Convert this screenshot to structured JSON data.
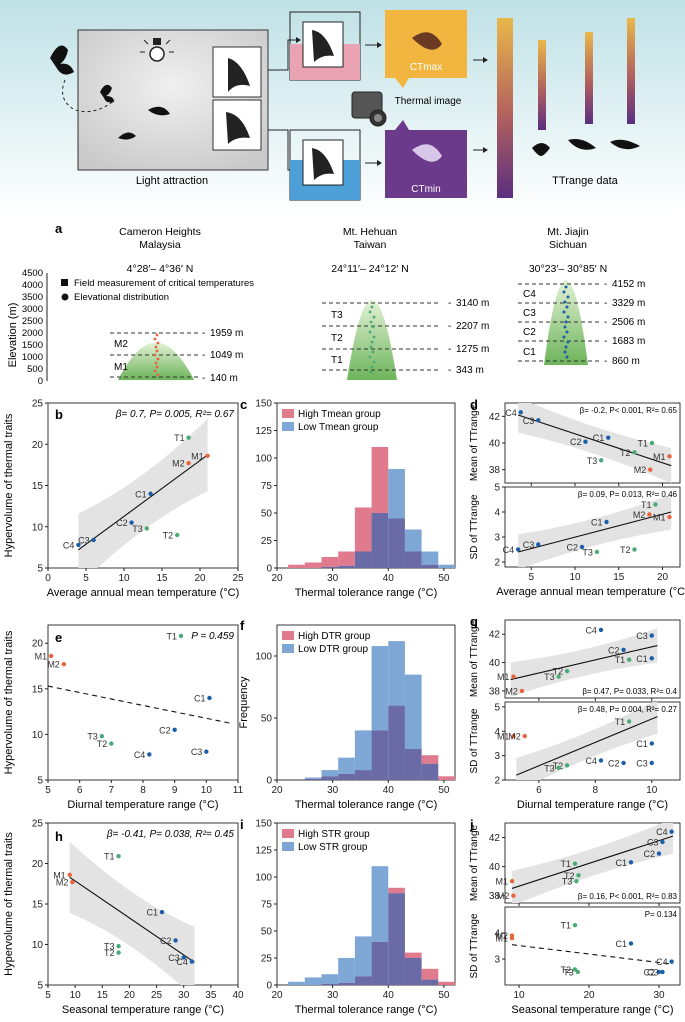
{
  "colors": {
    "tropical": "#e8643c",
    "subtropical": "#4aaa78",
    "temperate": "#1a5fa8",
    "high_bar": "#e07b8e",
    "low_bar": "#7fa7d6",
    "overlap_bar": "#6a6aa6",
    "ci_band": "#e3e3e3",
    "sky_top": "#d6ecef",
    "ctmax_box": "#f2b640",
    "ctmin_box": "#6b3a8a"
  },
  "top": {
    "light_attraction": "Light attraction",
    "ctmax": "CTmax",
    "ctmin": "CTmin",
    "thermal_image": "Thermal image",
    "ttrange_data": "TTrange data"
  },
  "panel_a": {
    "letter": "a",
    "sites": [
      {
        "name": "Cameron Heights",
        "region": "Malaysia",
        "lat": "4°28′– 4°36′ N"
      },
      {
        "name": "Mt. Hehuan",
        "region": "Taiwan",
        "lat": "24°11′– 24°12′ N"
      },
      {
        "name": "Mt. Jiajin",
        "region": "Sichuan",
        "lat": "30°23′– 30°85′ N"
      }
    ],
    "ylabel": "Elevation (m)",
    "yticks": [
      "4500",
      "4000",
      "3500",
      "3000",
      "2500",
      "2000",
      "1500",
      "1000",
      "500",
      "0"
    ],
    "legend_square": "Field measurement of critical temperatures",
    "legend_circle": "Elevational distribution",
    "malaysia_bands": [
      "M2",
      "M1"
    ],
    "malaysia_elev": [
      "1959 m",
      "1049 m",
      "140 m"
    ],
    "taiwan_bands": [
      "T3",
      "T2",
      "T1"
    ],
    "taiwan_elev": [
      "3140 m",
      "2207 m",
      "1275 m",
      "343 m"
    ],
    "sichuan_bands": [
      "C4",
      "C3",
      "C2",
      "C1"
    ],
    "sichuan_elev": [
      "4152 m",
      "3329 m",
      "2506 m",
      "1683 m",
      "860 m"
    ]
  },
  "panel_b": {
    "letter": "b",
    "stat": "β= 0.7, P= 0.005, R²= 0.67",
    "xlabel": "Average annual mean temperature (°C)",
    "ylabel": "Hypervolume of thermal traits",
    "xticks": [
      "0",
      "5",
      "10",
      "15",
      "20",
      "25"
    ],
    "yticks": [
      "5",
      "10",
      "15",
      "20",
      "25"
    ]
  },
  "panel_c": {
    "letter": "c",
    "legend_high": "High Tmean group",
    "legend_low": "Low Tmean group",
    "xlabel": "Thermal tolerance range (°C)",
    "ylabel": "Frequency",
    "xticks": [
      "20",
      "30",
      "40",
      "50"
    ],
    "yticks": [
      "0",
      "25",
      "50",
      "75",
      "100",
      "125",
      "150"
    ]
  },
  "panel_d": {
    "letter": "d",
    "stat_top": "β= -0.2, P< 0.001, R²= 0.65",
    "stat_bottom": "β= 0.09, P= 0.013, R²= 0.46",
    "ylabel_top": "Mean of TTrange",
    "ylabel_bottom": "SD of TTrange",
    "xlabel": "Average annual mean temperature (°C)",
    "xticks": [
      "5",
      "10",
      "15",
      "20"
    ],
    "yticks_top": [
      "38",
      "40",
      "42"
    ],
    "yticks_bottom": [
      "2",
      "3",
      "4",
      "5"
    ]
  },
  "panel_e": {
    "letter": "e",
    "stat": "P = 0.459",
    "xlabel": "Diurnal temperature range (°C)",
    "ylabel": "Hypervolume of thermal traits",
    "xticks": [
      "5",
      "6",
      "7",
      "8",
      "9",
      "10",
      "11"
    ],
    "yticks": [
      "5",
      "10",
      "15",
      "20"
    ]
  },
  "panel_f": {
    "letter": "f",
    "legend_high": "High DTR group",
    "legend_low": "Low DTR group",
    "xlabel": "Thermal tolerance range (°C)",
    "ylabel": "Frequency",
    "xticks": [
      "20",
      "30",
      "40",
      "50"
    ],
    "yticks": [
      "0",
      "50",
      "100"
    ]
  },
  "panel_g": {
    "letter": "g",
    "stat_top": "β= 0.47, P= 0.033, R²= 0.4",
    "stat_bottom": "β= 0.48, P= 0.004, R²= 0.27",
    "ylabel_top": "Mean of TTrange",
    "ylabel_bottom": "SD of TTrange",
    "xlabel": "Diurnal temperature range (°C)",
    "xticks": [
      "6",
      "8",
      "10"
    ],
    "yticks_top": [
      "38",
      "40",
      "42"
    ],
    "yticks_bottom": [
      "2",
      "3",
      "4",
      "5"
    ]
  },
  "panel_h": {
    "letter": "h",
    "stat": "β= -0.41, P= 0.038, R²= 0.45",
    "xlabel": "Seasonal temperature range (°C)",
    "ylabel": "Hypervolume of thermal traits",
    "xticks": [
      "5",
      "10",
      "15",
      "20",
      "25",
      "30",
      "35",
      "40"
    ],
    "yticks": [
      "5",
      "10",
      "15",
      "20",
      "25"
    ]
  },
  "panel_i": {
    "letter": "i",
    "legend_high": "High STR group",
    "legend_low": "Low STR group",
    "xlabel": "Thermal tolerance range (°C)",
    "ylabel": "Frequency",
    "xticks": [
      "20",
      "30",
      "40",
      "50"
    ],
    "yticks": [
      "0",
      "25",
      "50",
      "75",
      "100",
      "125",
      "150"
    ]
  },
  "panel_j": {
    "letter": "j",
    "stat_top": "β= 0.16, P< 0.001, R²= 0.83",
    "stat_bottom": "P= 0.134",
    "ylabel_top": "Mean of TTrange",
    "ylabel_bottom": "SD of TTrange",
    "xlabel": "Seasonal temperature range (°C)",
    "xticks": [
      "10",
      "20",
      "30"
    ],
    "yticks_top": [
      "38",
      "40",
      "42"
    ],
    "yticks_bottom": [
      "3",
      "4"
    ]
  },
  "chart_data": [
    {
      "id": "b",
      "type": "scatter",
      "xlim": [
        0,
        25
      ],
      "ylim": [
        5,
        25
      ],
      "points": [
        {
          "label": "T1",
          "x": 18.5,
          "y": 20.8,
          "g": "s"
        },
        {
          "label": "M1",
          "x": 21,
          "y": 18.6,
          "g": "t"
        },
        {
          "label": "M2",
          "x": 18.5,
          "y": 17.7,
          "g": "t"
        },
        {
          "label": "C1",
          "x": 13.5,
          "y": 14.0,
          "g": "c"
        },
        {
          "label": "C2",
          "x": 11,
          "y": 10.5,
          "g": "c"
        },
        {
          "label": "T3",
          "x": 13,
          "y": 9.8,
          "g": "s"
        },
        {
          "label": "T2",
          "x": 17,
          "y": 9.0,
          "g": "s"
        },
        {
          "label": "C3",
          "x": 6,
          "y": 8.4,
          "g": "c"
        },
        {
          "label": "C4",
          "x": 4,
          "y": 7.8,
          "g": "c"
        }
      ],
      "fit": [
        [
          4,
          7.2
        ],
        [
          21,
          18.7
        ]
      ],
      "fit_style": "solid"
    },
    {
      "id": "c",
      "type": "histogram",
      "xlim": [
        20,
        52
      ],
      "ylim": [
        0,
        150
      ],
      "bin_start": 22,
      "bin_width": 3,
      "series": [
        {
          "name": "High Tmean group",
          "values": [
            3,
            5,
            10,
            15,
            55,
            110,
            45,
            15,
            3,
            0
          ]
        },
        {
          "name": "Low Tmean group",
          "values": [
            0,
            0,
            1,
            2,
            15,
            50,
            90,
            35,
            15,
            3
          ]
        }
      ]
    },
    {
      "id": "d_top",
      "type": "scatter",
      "xlim": [
        2,
        22
      ],
      "ylim": [
        37,
        43
      ],
      "points": [
        {
          "label": "C4",
          "x": 3.8,
          "y": 42.3,
          "g": "c"
        },
        {
          "label": "C3",
          "x": 5.8,
          "y": 41.7,
          "g": "c"
        },
        {
          "label": "C1",
          "x": 13.8,
          "y": 40.4,
          "g": "c"
        },
        {
          "label": "C2",
          "x": 11.2,
          "y": 40.1,
          "g": "c"
        },
        {
          "label": "T1",
          "x": 18.8,
          "y": 40.0,
          "g": "s"
        },
        {
          "label": "M1",
          "x": 20.8,
          "y": 39.0,
          "g": "t"
        },
        {
          "label": "T2",
          "x": 16.8,
          "y": 39.3,
          "g": "s"
        },
        {
          "label": "T3",
          "x": 13.0,
          "y": 38.7,
          "g": "s"
        },
        {
          "label": "M2",
          "x": 18.6,
          "y": 38.0,
          "g": "t"
        }
      ],
      "fit": [
        [
          3.5,
          42.1
        ],
        [
          21,
          38.3
        ]
      ],
      "fit_style": "solid"
    },
    {
      "id": "d_bottom",
      "type": "scatter",
      "xlim": [
        2,
        22
      ],
      "ylim": [
        1.8,
        5
      ],
      "points": [
        {
          "label": "T1",
          "x": 19.2,
          "y": 4.3,
          "g": "s"
        },
        {
          "label": "M2",
          "x": 18.5,
          "y": 3.9,
          "g": "t"
        },
        {
          "label": "M1",
          "x": 20.8,
          "y": 3.8,
          "g": "t"
        },
        {
          "label": "C1",
          "x": 13.6,
          "y": 3.6,
          "g": "c"
        },
        {
          "label": "C3",
          "x": 5.8,
          "y": 2.7,
          "g": "c"
        },
        {
          "label": "C4",
          "x": 3.5,
          "y": 2.5,
          "g": "c"
        },
        {
          "label": "C2",
          "x": 10.8,
          "y": 2.6,
          "g": "c"
        },
        {
          "label": "T3",
          "x": 12.5,
          "y": 2.4,
          "g": "s"
        },
        {
          "label": "T2",
          "x": 16.8,
          "y": 2.5,
          "g": "s"
        }
      ],
      "fit": [
        [
          3.5,
          2.4
        ],
        [
          21,
          4.0
        ]
      ],
      "fit_style": "solid"
    },
    {
      "id": "e",
      "type": "scatter",
      "xlim": [
        5,
        11
      ],
      "ylim": [
        5,
        22
      ],
      "points": [
        {
          "label": "T1",
          "x": 9.2,
          "y": 20.8,
          "g": "s"
        },
        {
          "label": "M1",
          "x": 5.1,
          "y": 18.6,
          "g": "t"
        },
        {
          "label": "M2",
          "x": 5.5,
          "y": 17.7,
          "g": "t"
        },
        {
          "label": "C1",
          "x": 10.1,
          "y": 14.0,
          "g": "c"
        },
        {
          "label": "C2",
          "x": 9.0,
          "y": 10.5,
          "g": "c"
        },
        {
          "label": "T3",
          "x": 6.7,
          "y": 9.8,
          "g": "s"
        },
        {
          "label": "T2",
          "x": 7.0,
          "y": 9.0,
          "g": "s"
        },
        {
          "label": "C4",
          "x": 8.2,
          "y": 7.8,
          "g": "c"
        },
        {
          "label": "C3",
          "x": 10.0,
          "y": 8.1,
          "g": "c"
        }
      ],
      "fit": [
        [
          5,
          15.3
        ],
        [
          10.8,
          11.2
        ]
      ],
      "fit_style": "dashed"
    },
    {
      "id": "f",
      "type": "histogram",
      "xlim": [
        20,
        52
      ],
      "ylim": [
        0,
        125
      ],
      "bin_start": 22,
      "bin_width": 3,
      "series": [
        {
          "name": "High DTR group",
          "values": [
            0,
            1,
            3,
            5,
            8,
            40,
            60,
            25,
            20,
            3
          ]
        },
        {
          "name": "Low DTR group",
          "values": [
            0,
            2,
            8,
            18,
            40,
            108,
            112,
            85,
            13,
            0
          ]
        }
      ]
    },
    {
      "id": "g_top",
      "type": "scatter",
      "xlim": [
        4.8,
        11
      ],
      "ylim": [
        37.5,
        43
      ],
      "points": [
        {
          "label": "C4",
          "x": 8.2,
          "y": 42.3,
          "g": "c"
        },
        {
          "label": "C3",
          "x": 10.0,
          "y": 41.9,
          "g": "c"
        },
        {
          "label": "C2",
          "x": 9.0,
          "y": 40.9,
          "g": "c"
        },
        {
          "label": "T1",
          "x": 9.2,
          "y": 40.2,
          "g": "s"
        },
        {
          "label": "C1",
          "x": 10.0,
          "y": 40.3,
          "g": "c"
        },
        {
          "label": "T2",
          "x": 7.0,
          "y": 39.4,
          "g": "s"
        },
        {
          "label": "M1",
          "x": 5.1,
          "y": 39.0,
          "g": "t"
        },
        {
          "label": "T3",
          "x": 6.7,
          "y": 39.0,
          "g": "s"
        },
        {
          "label": "M2",
          "x": 5.4,
          "y": 38.0,
          "g": "t"
        }
      ],
      "fit": [
        [
          5,
          38.8
        ],
        [
          10.2,
          41.2
        ]
      ],
      "fit_style": "solid"
    },
    {
      "id": "g_bottom",
      "type": "scatter",
      "xlim": [
        4.8,
        11
      ],
      "ylim": [
        2,
        5.2
      ],
      "points": [
        {
          "label": "T1",
          "x": 9.2,
          "y": 4.4,
          "g": "s"
        },
        {
          "label": "M1",
          "x": 5.1,
          "y": 3.8,
          "g": "t"
        },
        {
          "label": "M2",
          "x": 5.5,
          "y": 3.8,
          "g": "t"
        },
        {
          "label": "C1",
          "x": 10.0,
          "y": 3.5,
          "g": "c"
        },
        {
          "label": "C4",
          "x": 8.2,
          "y": 2.8,
          "g": "c"
        },
        {
          "label": "C2",
          "x": 9.0,
          "y": 2.7,
          "g": "c"
        },
        {
          "label": "C3",
          "x": 10.0,
          "y": 2.7,
          "g": "c"
        },
        {
          "label": "T2",
          "x": 7.0,
          "y": 2.6,
          "g": "s"
        },
        {
          "label": "T3",
          "x": 6.7,
          "y": 2.5,
          "g": "s"
        }
      ],
      "fit": [
        [
          5.2,
          2.2
        ],
        [
          10.2,
          4.6
        ]
      ],
      "fit_style": "solid"
    },
    {
      "id": "h",
      "type": "scatter",
      "xlim": [
        5,
        40
      ],
      "ylim": [
        5,
        25
      ],
      "points": [
        {
          "label": "T1",
          "x": 18,
          "y": 20.9,
          "g": "s"
        },
        {
          "label": "M1",
          "x": 9,
          "y": 18.6,
          "g": "t"
        },
        {
          "label": "M2",
          "x": 9.5,
          "y": 17.7,
          "g": "t"
        },
        {
          "label": "C1",
          "x": 26,
          "y": 14.0,
          "g": "c"
        },
        {
          "label": "C2",
          "x": 28.5,
          "y": 10.5,
          "g": "c"
        },
        {
          "label": "T3",
          "x": 18,
          "y": 9.8,
          "g": "s"
        },
        {
          "label": "T2",
          "x": 18,
          "y": 9.0,
          "g": "s"
        },
        {
          "label": "C3",
          "x": 30,
          "y": 8.4,
          "g": "c"
        },
        {
          "label": "C4",
          "x": 31.5,
          "y": 7.9,
          "g": "c"
        }
      ],
      "fit": [
        [
          9,
          18.3
        ],
        [
          32,
          7.8
        ]
      ],
      "fit_style": "solid"
    },
    {
      "id": "i",
      "type": "histogram",
      "xlim": [
        20,
        52
      ],
      "ylim": [
        0,
        150
      ],
      "bin_start": 22,
      "bin_width": 3,
      "series": [
        {
          "name": "High STR group",
          "values": [
            0,
            0,
            1,
            2,
            8,
            40,
            90,
            30,
            15,
            3
          ]
        },
        {
          "name": "Low STR group",
          "values": [
            3,
            7,
            10,
            25,
            45,
            110,
            85,
            25,
            5,
            0
          ]
        }
      ]
    },
    {
      "id": "j_top",
      "type": "scatter",
      "xlim": [
        8,
        33
      ],
      "ylim": [
        37.5,
        43
      ],
      "points": [
        {
          "label": "C4",
          "x": 31.8,
          "y": 42.4,
          "g": "c"
        },
        {
          "label": "C3",
          "x": 30.5,
          "y": 41.7,
          "g": "c"
        },
        {
          "label": "C2",
          "x": 30.0,
          "y": 40.9,
          "g": "c"
        },
        {
          "label": "T1",
          "x": 18.0,
          "y": 40.2,
          "g": "s"
        },
        {
          "label": "C1",
          "x": 26.0,
          "y": 40.3,
          "g": "c"
        },
        {
          "label": "T2",
          "x": 18.5,
          "y": 39.4,
          "g": "s"
        },
        {
          "label": "M1",
          "x": 9.0,
          "y": 39.0,
          "g": "t"
        },
        {
          "label": "T3",
          "x": 18.2,
          "y": 39.0,
          "g": "s"
        },
        {
          "label": "M2",
          "x": 9.2,
          "y": 38.0,
          "g": "t"
        }
      ],
      "fit": [
        [
          9,
          38.5
        ],
        [
          32,
          42.1
        ]
      ],
      "fit_style": "solid"
    },
    {
      "id": "j_bottom",
      "type": "scatter",
      "xlim": [
        8,
        33
      ],
      "ylim": [
        2,
        5
      ],
      "points": [
        {
          "label": "T1",
          "x": 18.0,
          "y": 4.3,
          "g": "s"
        },
        {
          "label": "M2",
          "x": 9.0,
          "y": 3.9,
          "g": "t"
        },
        {
          "label": "M1",
          "x": 9.0,
          "y": 3.8,
          "g": "t"
        },
        {
          "label": "C1",
          "x": 26.0,
          "y": 3.6,
          "g": "c"
        },
        {
          "label": "C4",
          "x": 31.8,
          "y": 2.9,
          "g": "c"
        },
        {
          "label": "T2",
          "x": 18.0,
          "y": 2.6,
          "g": "s"
        },
        {
          "label": "T3",
          "x": 18.4,
          "y": 2.5,
          "g": "s"
        },
        {
          "label": "C2",
          "x": 30.0,
          "y": 2.5,
          "g": "c"
        },
        {
          "label": "C3",
          "x": 30.5,
          "y": 2.5,
          "g": "c"
        }
      ],
      "fit": [
        [
          9,
          3.55
        ],
        [
          32,
          2.8
        ]
      ],
      "fit_style": "dashed"
    }
  ]
}
